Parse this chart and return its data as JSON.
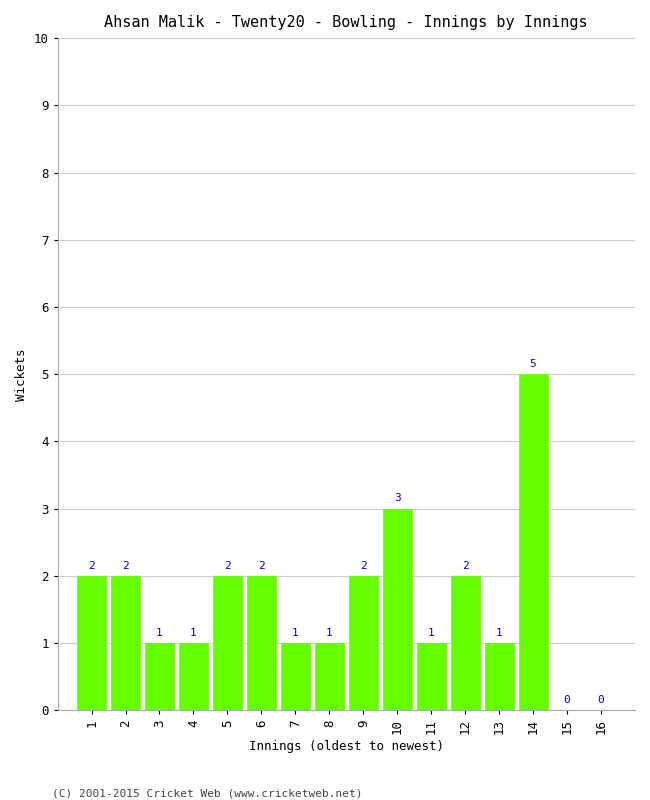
{
  "title": "Ahsan Malik - Twenty20 - Bowling - Innings by Innings",
  "xlabel": "Innings (oldest to newest)",
  "ylabel": "Wickets",
  "innings": [
    1,
    2,
    3,
    4,
    5,
    6,
    7,
    8,
    9,
    10,
    11,
    12,
    13,
    14,
    15,
    16
  ],
  "wickets": [
    2,
    2,
    1,
    1,
    2,
    2,
    1,
    1,
    2,
    3,
    1,
    2,
    1,
    5,
    0,
    0
  ],
  "bar_color": "#66ff00",
  "bar_edge_color": "#66ff00",
  "label_color": "#0000cc",
  "background_color": "#ffffff",
  "grid_color": "#cccccc",
  "ylim": [
    0,
    10
  ],
  "xlim": [
    0.0,
    17.0
  ],
  "yticks": [
    0,
    1,
    2,
    3,
    4,
    5,
    6,
    7,
    8,
    9,
    10
  ],
  "xticks": [
    1,
    2,
    3,
    4,
    5,
    6,
    7,
    8,
    9,
    10,
    11,
    12,
    13,
    14,
    15,
    16
  ],
  "title_fontsize": 11,
  "axis_label_fontsize": 9,
  "tick_fontsize": 9,
  "bar_label_fontsize": 8,
  "footer": "(C) 2001-2015 Cricket Web (www.cricketweb.net)",
  "footer_fontsize": 8
}
